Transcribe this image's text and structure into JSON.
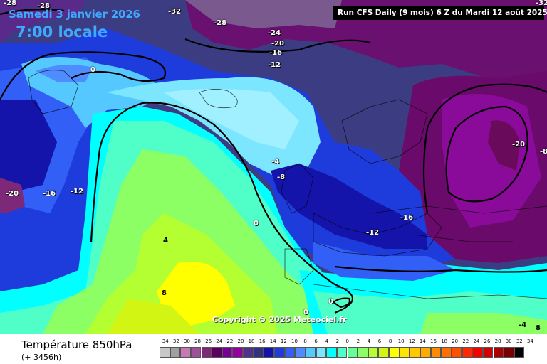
{
  "header": {
    "date": "Samedi 3 janvier 2026",
    "hour": "7:00 locale",
    "run_info": "Run CFS Daily (9 mois) 6 Z du Mardi 12 août 2025"
  },
  "map": {
    "copyright": "Copyright © 2025 Meteociel.fr",
    "isotherm_labels": [
      "-28",
      "-32",
      "-28",
      "-32",
      "-28",
      "-24",
      "-20",
      "-16",
      "-12",
      "0",
      "-20",
      "-16",
      "-12",
      "-4",
      "-8",
      "0",
      "4",
      "8",
      "-16",
      "-12",
      "-20",
      "-8",
      "0",
      "0",
      "-4",
      "8"
    ]
  },
  "footer": {
    "title": "Température 850hPa",
    "subtitle": "(+ 3456h)"
  },
  "legend": {
    "labels": [
      "-34",
      "-32",
      "-30",
      "-28",
      "-26",
      "-24",
      "-22",
      "-20",
      "-18",
      "-16",
      "-14",
      "-12",
      "-10",
      "-8",
      "-6",
      "-4",
      "-2",
      "0",
      "2",
      "4",
      "6",
      "8",
      "10",
      "12",
      "14",
      "16",
      "18",
      "20",
      "22",
      "24",
      "26",
      "28",
      "30",
      "32",
      "34"
    ],
    "colors": [
      "#c8c8c8",
      "#a0a0a0",
      "#c878b4",
      "#a0509b",
      "#7d2878",
      "#5a005f",
      "#780096",
      "#9600a0",
      "#50328c",
      "#32327d",
      "#1414aa",
      "#1e3cdc",
      "#325ff5",
      "#4f8cff",
      "#55c8ff",
      "#7de6ff",
      "#00ffff",
      "#50ffc8",
      "#64ff96",
      "#8cff64",
      "#b4ff32",
      "#d2f514",
      "#ffff00",
      "#ffe600",
      "#ffc800",
      "#ffaa00",
      "#ff8c00",
      "#ff6e00",
      "#ff5000",
      "#ff2800",
      "#f50000",
      "#d20000",
      "#aa0000",
      "#780000",
      "#000000"
    ]
  }
}
